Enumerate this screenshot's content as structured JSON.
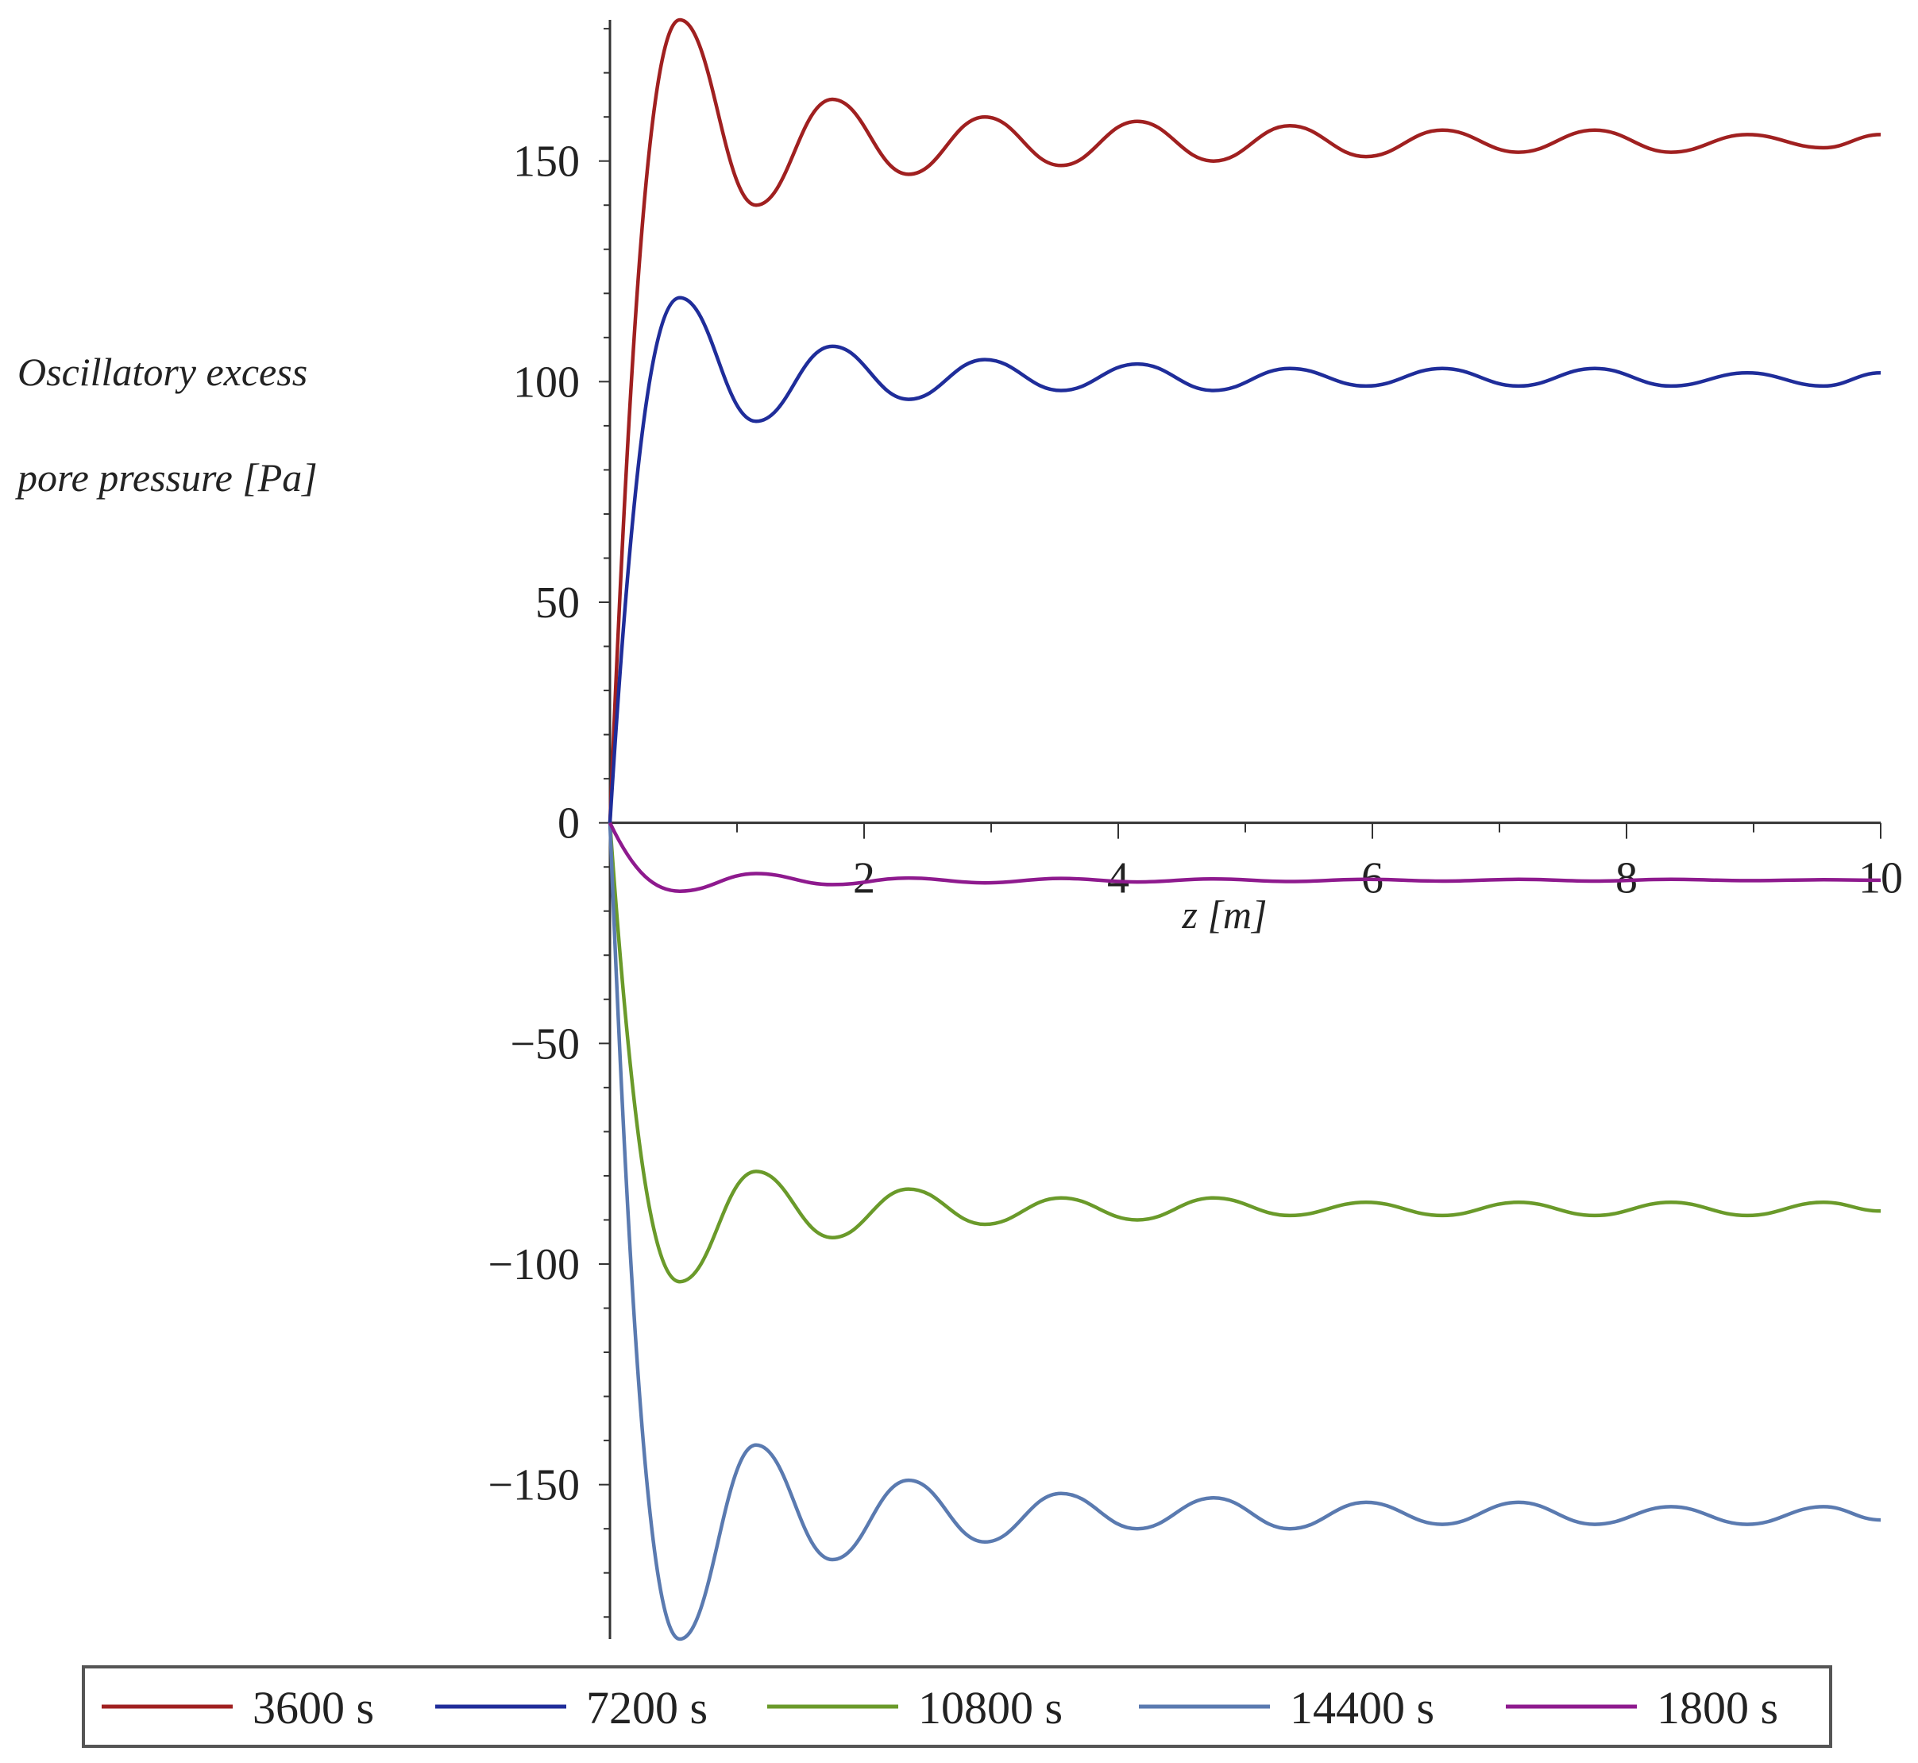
{
  "chart_data": {
    "type": "line",
    "title": "",
    "xlabel": "z [m]",
    "ylabel_lines": [
      "Oscillatory excess",
      "pore pressure [Pa]"
    ],
    "xlim": [
      0,
      10
    ],
    "ylim": [
      -185,
      182
    ],
    "x_ticks": [
      2,
      4,
      6,
      8,
      10
    ],
    "y_ticks": [
      150,
      100,
      50,
      0,
      -50,
      -100,
      -150
    ],
    "y_tick_labels": [
      "150",
      "100",
      "50",
      "0",
      "−50",
      "−100",
      "−150"
    ],
    "grid": false,
    "legend_position": "bottom",
    "series": [
      {
        "name": "3600 s",
        "color": "#a02020",
        "x": [
          0,
          0.55,
          1.15,
          1.75,
          2.35,
          2.95,
          3.55,
          4.15,
          4.75,
          5.35,
          5.95,
          6.55,
          7.15,
          7.75,
          8.35,
          8.95,
          9.55,
          10
        ],
        "y": [
          0,
          182,
          140,
          164,
          147,
          160,
          149,
          159,
          150,
          158,
          151,
          157,
          152,
          157,
          152,
          156,
          153,
          156
        ]
      },
      {
        "name": "7200 s",
        "color": "#1f2d9a",
        "x": [
          0,
          0.55,
          1.15,
          1.75,
          2.35,
          2.95,
          3.55,
          4.15,
          4.75,
          5.35,
          5.95,
          6.55,
          7.15,
          7.75,
          8.35,
          8.95,
          9.55,
          10
        ],
        "y": [
          0,
          119,
          91,
          108,
          96,
          105,
          98,
          104,
          98,
          103,
          99,
          103,
          99,
          103,
          99,
          102,
          99,
          102
        ]
      },
      {
        "name": "10800 s",
        "color": "#6a9a2a",
        "x": [
          0,
          0.55,
          1.15,
          1.75,
          2.35,
          2.95,
          3.55,
          4.15,
          4.75,
          5.35,
          5.95,
          6.55,
          7.15,
          7.75,
          8.35,
          8.95,
          9.55,
          10
        ],
        "y": [
          0,
          -104,
          -79,
          -94,
          -83,
          -91,
          -85,
          -90,
          -85,
          -89,
          -86,
          -89,
          -86,
          -89,
          -86,
          -89,
          -86,
          -88
        ]
      },
      {
        "name": "14400 s",
        "color": "#5a7ab0",
        "x": [
          0,
          0.55,
          1.15,
          1.75,
          2.35,
          2.95,
          3.55,
          4.15,
          4.75,
          5.35,
          5.95,
          6.55,
          7.15,
          7.75,
          8.35,
          8.95,
          9.55,
          10
        ],
        "y": [
          0,
          -185,
          -141,
          -167,
          -149,
          -163,
          -152,
          -160,
          -153,
          -160,
          -154,
          -159,
          -154,
          -159,
          -155,
          -159,
          -155,
          -158
        ]
      },
      {
        "name": "1800 s",
        "color": "#8e1a8e",
        "x": [
          0,
          0.55,
          1.15,
          1.75,
          2.35,
          2.95,
          3.55,
          4.15,
          4.75,
          5.35,
          5.95,
          6.55,
          7.15,
          7.75,
          8.35,
          8.95,
          9.55,
          10
        ],
        "y": [
          0,
          -15.5,
          -11.5,
          -14,
          -12.5,
          -13.6,
          -12.6,
          -13.4,
          -12.7,
          -13.3,
          -12.8,
          -13.2,
          -12.8,
          -13.2,
          -12.8,
          -13.1,
          -12.9,
          -13
        ]
      }
    ]
  }
}
